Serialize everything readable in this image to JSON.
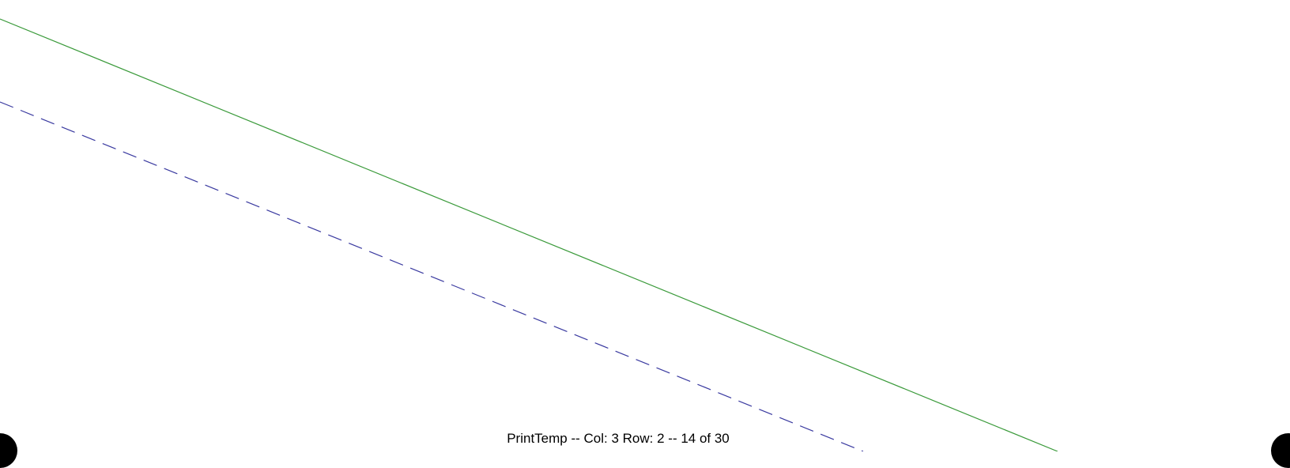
{
  "page": {
    "background_color": "#ffffff"
  },
  "footer": {
    "text": "PrintTemp -- Col: 3  Row: 2 -- 14 of 30",
    "text_color": "#000000"
  },
  "tile": {
    "column": 3,
    "row": 2,
    "page_number": 14,
    "page_count": 30
  },
  "strokes": [
    {
      "name": "solid-line",
      "style": "solid",
      "color": "#3a9a3a"
    },
    {
      "name": "dashed-line",
      "style": "dashed",
      "color": "#3a3aa0"
    }
  ],
  "registration_marks": {
    "color": "#000000"
  }
}
